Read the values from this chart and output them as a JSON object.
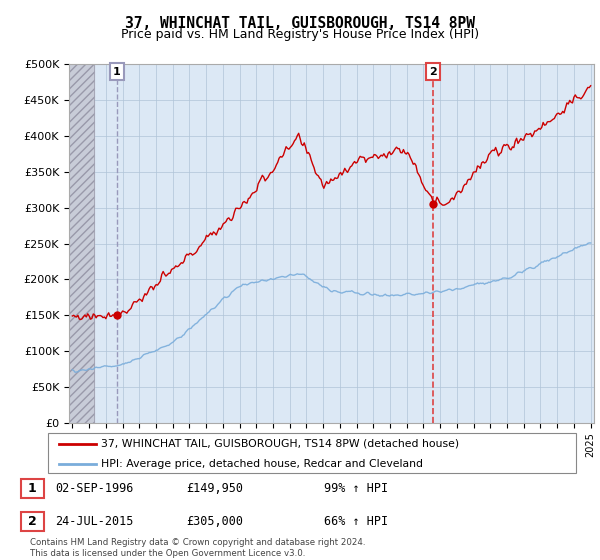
{
  "title": "37, WHINCHAT TAIL, GUISBOROUGH, TS14 8PW",
  "subtitle": "Price paid vs. HM Land Registry's House Price Index (HPI)",
  "ylim": [
    0,
    500000
  ],
  "yticks": [
    0,
    50000,
    100000,
    150000,
    200000,
    250000,
    300000,
    350000,
    400000,
    450000,
    500000
  ],
  "ytick_labels": [
    "£0",
    "£50K",
    "£100K",
    "£150K",
    "£200K",
    "£250K",
    "£300K",
    "£350K",
    "£400K",
    "£450K",
    "£500K"
  ],
  "sale1_date": 1996.67,
  "sale1_price": 149950,
  "sale2_date": 2015.56,
  "sale2_price": 305000,
  "red_color": "#cc0000",
  "blue_color": "#7aaddb",
  "dashed1_color": "#aaaacc",
  "dashed2_color": "#dd4444",
  "legend1": "37, WHINCHAT TAIL, GUISBOROUGH, TS14 8PW (detached house)",
  "legend2": "HPI: Average price, detached house, Redcar and Cleveland",
  "table_row1": [
    "1",
    "02-SEP-1996",
    "£149,950",
    "99% ↑ HPI"
  ],
  "table_row2": [
    "2",
    "24-JUL-2015",
    "£305,000",
    "66% ↑ HPI"
  ],
  "footnote": "Contains HM Land Registry data © Crown copyright and database right 2024.\nThis data is licensed under the Open Government Licence v3.0.",
  "plot_bg": "#dce8f5",
  "hatch_bg": "#c8ccd8",
  "grid_color": "#b0c4d8",
  "title_fontsize": 10.5,
  "subtitle_fontsize": 9
}
